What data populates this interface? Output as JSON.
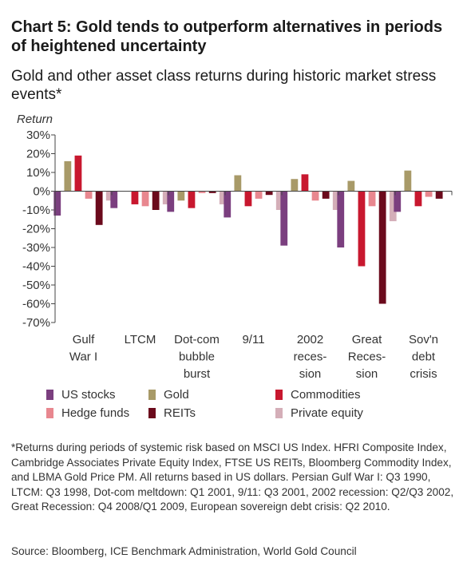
{
  "chart_data": {
    "type": "bar",
    "title": "Chart 5: Gold tends to outperform alternatives in periods of heightened uncertainty",
    "subtitle": "Gold and other asset class returns during historic market stress events*",
    "ylabel": "Return",
    "ylim": [
      -70,
      30
    ],
    "yticks": [
      "30%",
      "20%",
      "10%",
      "0%",
      "-10%",
      "-20%",
      "-30%",
      "-40%",
      "-50%",
      "-60%",
      "-70%"
    ],
    "grid": false,
    "legend_position": "bottom",
    "categories": [
      [
        "Gulf",
        "War I"
      ],
      [
        "LTCM"
      ],
      [
        "Dot-com",
        "bubble",
        "burst"
      ],
      [
        "9/11"
      ],
      [
        "2002",
        "reces-",
        "sion"
      ],
      [
        "Great",
        "Reces-",
        "sion"
      ],
      [
        "Sov'n",
        "debt",
        "crisis"
      ]
    ],
    "series": [
      {
        "name": "US stocks",
        "color": "#7b3f7f",
        "values": [
          -13,
          -9,
          -11,
          -14,
          -29,
          -30,
          -11
        ]
      },
      {
        "name": "Gold",
        "color": "#a89a68",
        "values": [
          16,
          0,
          -5,
          8.5,
          6.5,
          5.5,
          11
        ]
      },
      {
        "name": "Commodities",
        "color": "#c8182f",
        "values": [
          19,
          -7,
          -9,
          -8,
          9,
          -40,
          -8
        ]
      },
      {
        "name": "Hedge funds",
        "color": "#e8878f",
        "values": [
          -4,
          -8,
          -1,
          -4,
          -5,
          -8,
          -3
        ]
      },
      {
        "name": "REITs",
        "color": "#6b0a1c",
        "values": [
          -18,
          -10,
          -1,
          -2,
          -4,
          -60,
          -4
        ]
      },
      {
        "name": "Private equity",
        "color": "#d4aeb8",
        "values": [
          -5,
          -7,
          -7,
          -10,
          -10,
          -16,
          0
        ]
      }
    ]
  },
  "footnote": "*Returns during periods of systemic risk based on MSCI US Index. HFRI Composite Index, Cambridge Associates Private Equity Index, FTSE US REITs, Bloomberg Commodity Index, and LBMA Gold Price PM. All returns based in US dollars. Persian Gulf War I: Q3 1990, LTCM: Q3 1998, Dot-com meltdown: Q1 2001, 9/11: Q3 2001, 2002 recession: Q2/Q3 2002, Great Recession: Q4 2008/Q1 2009, European sovereign debt crisis: Q2 2010.",
  "source": "Source: Bloomberg, ICE Benchmark Administration, World Gold Council"
}
